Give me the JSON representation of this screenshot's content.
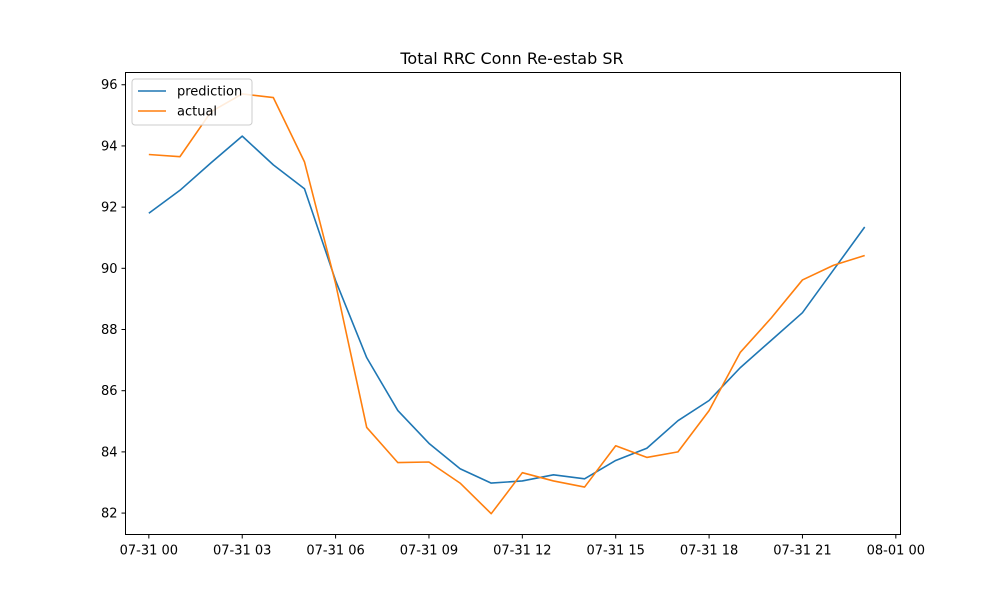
{
  "chart_data": {
    "type": "line",
    "title": "Total RRC Conn Re-estab SR",
    "xlabel": "",
    "ylabel": "",
    "x": [
      "07-31 00",
      "07-31 01",
      "07-31 02",
      "07-31 03",
      "07-31 04",
      "07-31 05",
      "07-31 06",
      "07-31 07",
      "07-31 08",
      "07-31 09",
      "07-31 10",
      "07-31 11",
      "07-31 12",
      "07-31 13",
      "07-31 14",
      "07-31 15",
      "07-31 16",
      "07-31 17",
      "07-31 18",
      "07-31 19",
      "07-31 20",
      "07-31 21",
      "07-31 22",
      "07-31 23"
    ],
    "x_ticks": [
      "07-31 00",
      "07-31 03",
      "07-31 06",
      "07-31 09",
      "07-31 12",
      "07-31 15",
      "07-31 18",
      "07-31 21",
      "08-01 00"
    ],
    "xlim": [
      -0.75,
      24.15
    ],
    "y_ticks": [
      82,
      84,
      86,
      88,
      90,
      92,
      94,
      96
    ],
    "ylim": [
      81.3,
      96.4
    ],
    "grid": false,
    "legend_position": "top-left",
    "series": [
      {
        "name": "prediction",
        "color": "#1f77b4",
        "values": [
          91.8,
          92.55,
          93.45,
          94.32,
          93.38,
          92.6,
          89.6,
          87.08,
          85.35,
          84.28,
          83.45,
          82.98,
          83.05,
          83.25,
          83.12,
          83.72,
          84.12,
          85.02,
          85.68,
          86.75,
          87.65,
          88.55,
          89.95,
          91.35
        ]
      },
      {
        "name": "actual",
        "color": "#ff7f0e",
        "values": [
          93.72,
          93.65,
          95.12,
          95.7,
          95.58,
          93.48,
          89.5,
          84.8,
          83.65,
          83.67,
          82.98,
          81.98,
          83.32,
          83.05,
          82.85,
          84.2,
          83.82,
          84.0,
          85.35,
          87.25,
          88.38,
          89.62,
          90.1,
          90.42
        ]
      }
    ]
  }
}
